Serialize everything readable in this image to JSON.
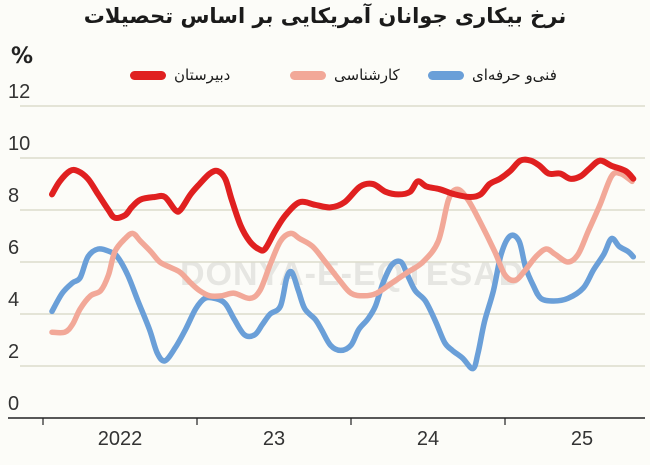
{
  "title": "نرخ بیکاری جوانان آمریکایی بر اساس تحصیلات",
  "unit_label": "%",
  "watermark": "DONYA-E-EQTESAD",
  "legend": [
    {
      "label": "دبیرستان",
      "color": "#e02020"
    },
    {
      "label": "کارشناسی",
      "color": "#f2a898"
    },
    {
      "label": "فنی‌و حرفه‌ای",
      "color": "#6a9fd8"
    }
  ],
  "chart_data": {
    "type": "line",
    "title": "نرخ بیکاری جوانان آمریکایی بر اساس تحصیلات",
    "xlabel": "",
    "ylabel": "%",
    "ylim": [
      0,
      12
    ],
    "yticks": [
      0,
      2,
      4,
      6,
      8,
      10,
      12
    ],
    "xtick_labels": [
      "2022",
      "23",
      "24",
      "25"
    ],
    "x_unit": "months since Jan 2022",
    "xlim": [
      0,
      47
    ],
    "grid": true,
    "legend_position": "top",
    "series": [
      {
        "name": "دبیرستان",
        "color": "#e02020",
        "x": [
          0.7,
          1.3,
          2.1,
          2.7,
          3.5,
          4.3,
          5.1,
          5.6,
          6.4,
          6.9,
          7.6,
          8.7,
          9.5,
          10.3,
          10.7,
          11.5,
          12.2,
          13.0,
          13.6,
          14.2,
          14.7,
          15.4,
          16.1,
          16.8,
          17.3,
          18.1,
          18.9,
          20.0,
          21.2,
          22.4,
          23.5,
          24.7,
          25.7,
          26.7,
          27.7,
          28.6,
          29.2,
          29.9,
          30.9,
          32.1,
          33.3,
          34.1,
          34.8,
          35.6,
          36.4,
          37.2,
          38.0,
          38.7,
          39.4,
          40.3,
          41.1,
          41.9,
          42.6,
          43.4,
          44.3,
          45.4,
          46.0
        ],
        "values": [
          8.6,
          9.1,
          9.5,
          9.5,
          9.2,
          8.6,
          8.0,
          7.7,
          7.8,
          8.1,
          8.4,
          8.5,
          8.5,
          8.0,
          8.0,
          8.6,
          9.0,
          9.4,
          9.5,
          9.2,
          8.4,
          7.4,
          6.8,
          6.5,
          6.5,
          7.2,
          7.8,
          8.3,
          8.2,
          8.1,
          8.3,
          8.9,
          9.0,
          8.7,
          8.6,
          8.7,
          9.1,
          8.9,
          8.8,
          8.6,
          8.5,
          8.6,
          9.0,
          9.2,
          9.5,
          9.9,
          9.9,
          9.7,
          9.4,
          9.4,
          9.2,
          9.3,
          9.6,
          9.9,
          9.7,
          9.5,
          9.2
        ]
      },
      {
        "name": "کارشناسی",
        "color": "#f2a898",
        "x": [
          0.7,
          1.7,
          2.3,
          2.9,
          3.7,
          4.5,
          5.1,
          5.6,
          6.4,
          7.0,
          7.6,
          8.4,
          9.1,
          9.9,
          10.7,
          11.5,
          12.2,
          13.0,
          13.9,
          14.9,
          16.1,
          16.9,
          17.7,
          18.5,
          19.3,
          20.0,
          21.0,
          22.0,
          23.1,
          24.0,
          25.0,
          26.0,
          27.2,
          28.4,
          29.6,
          30.8,
          31.6,
          32.3,
          33.1,
          34.0,
          35.2,
          36.0,
          36.8,
          37.6,
          38.4,
          39.2,
          39.9,
          40.9,
          41.7,
          42.5,
          43.4,
          44.3,
          45.0,
          45.9
        ],
        "values": [
          3.3,
          3.3,
          3.6,
          4.2,
          4.7,
          4.9,
          5.5,
          6.4,
          6.9,
          7.1,
          6.8,
          6.4,
          6.0,
          5.8,
          5.6,
          5.2,
          4.9,
          4.7,
          4.7,
          4.8,
          4.6,
          4.9,
          5.9,
          6.8,
          7.1,
          6.9,
          6.6,
          6.0,
          5.3,
          4.8,
          4.7,
          4.8,
          5.2,
          5.6,
          6.0,
          6.8,
          8.4,
          8.8,
          8.4,
          7.6,
          6.4,
          5.5,
          5.3,
          5.7,
          6.2,
          6.5,
          6.3,
          6.0,
          6.3,
          7.2,
          8.2,
          9.3,
          9.4,
          9.1
        ]
      },
      {
        "name": "فنی‌و حرفه‌ای",
        "color": "#6a9fd8",
        "x": [
          0.7,
          1.5,
          2.3,
          2.9,
          3.5,
          4.3,
          5.2,
          5.8,
          6.6,
          7.4,
          8.3,
          8.9,
          9.5,
          10.3,
          11.1,
          11.9,
          12.6,
          13.4,
          14.2,
          14.9,
          15.7,
          16.5,
          17.1,
          17.7,
          18.5,
          19.0,
          19.4,
          19.9,
          20.4,
          21.2,
          21.7,
          22.4,
          23.2,
          24.0,
          24.6,
          25.3,
          25.9,
          26.5,
          27.2,
          27.9,
          28.4,
          29.0,
          29.8,
          30.6,
          31.3,
          31.9,
          32.7,
          33.5,
          33.9,
          34.4,
          35.1,
          35.7,
          36.4,
          37.1,
          37.6,
          38.2,
          38.8,
          39.8,
          40.9,
          42.1,
          42.9,
          43.7,
          44.3,
          44.9,
          45.6,
          46.0
        ],
        "values": [
          4.1,
          4.8,
          5.2,
          5.4,
          6.2,
          6.5,
          6.4,
          6.2,
          5.5,
          4.5,
          3.4,
          2.5,
          2.2,
          2.7,
          3.4,
          4.2,
          4.6,
          4.6,
          4.4,
          3.8,
          3.2,
          3.2,
          3.6,
          4.0,
          4.3,
          5.4,
          5.6,
          4.9,
          4.2,
          3.8,
          3.4,
          2.8,
          2.6,
          2.8,
          3.4,
          3.8,
          4.3,
          5.2,
          5.9,
          6.0,
          5.5,
          4.9,
          4.5,
          3.7,
          2.9,
          2.6,
          2.3,
          1.9,
          2.5,
          3.7,
          4.9,
          6.3,
          7.0,
          6.8,
          5.8,
          5.1,
          4.6,
          4.5,
          4.6,
          5.0,
          5.7,
          6.3,
          6.9,
          6.6,
          6.4,
          6.2
        ]
      }
    ]
  }
}
